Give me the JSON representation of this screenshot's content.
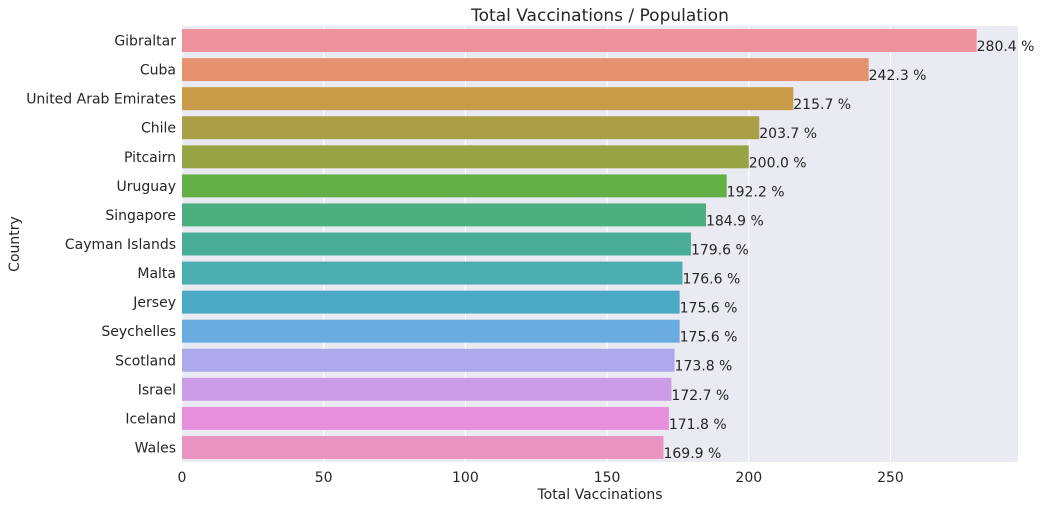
{
  "chart_data": {
    "type": "bar",
    "orientation": "horizontal",
    "title": "Total Vaccinations / Population",
    "xlabel": "Total Vaccinations",
    "ylabel": "Country",
    "xlim": [
      0,
      295
    ],
    "xticks": [
      0,
      50,
      100,
      150,
      200,
      250
    ],
    "grid": true,
    "categories": [
      "Gibraltar",
      "Cuba",
      "United Arab Emirates",
      "Chile",
      "Pitcairn",
      "Uruguay",
      "Singapore",
      "Cayman Islands",
      "Malta",
      "Jersey",
      "Seychelles",
      "Scotland",
      "Israel",
      "Iceland",
      "Wales"
    ],
    "values": [
      280.4,
      242.3,
      215.7,
      203.7,
      200.0,
      192.2,
      184.9,
      179.6,
      176.6,
      175.6,
      175.6,
      173.8,
      172.7,
      171.8,
      169.9
    ],
    "data_labels": [
      "280.4 %",
      "242.3 %",
      "215.7 %",
      "203.7 %",
      "200.0 %",
      "192.2 %",
      "184.9 %",
      "179.6 %",
      "176.6 %",
      "175.6 %",
      "175.6 %",
      "173.8 %",
      "172.7 %",
      "171.8 %",
      "169.9 %"
    ],
    "colors": [
      "#ee929e",
      "#e69170",
      "#c99a47",
      "#a89f47",
      "#97a443",
      "#63b146",
      "#4bb07d",
      "#4aae96",
      "#4badaf",
      "#4caac5",
      "#6aacdf",
      "#aca8ea",
      "#cd9ce7",
      "#e68fdc",
      "#e993c1"
    ],
    "background_color": "#eaeaf2",
    "grid_color": "#ffffff"
  }
}
